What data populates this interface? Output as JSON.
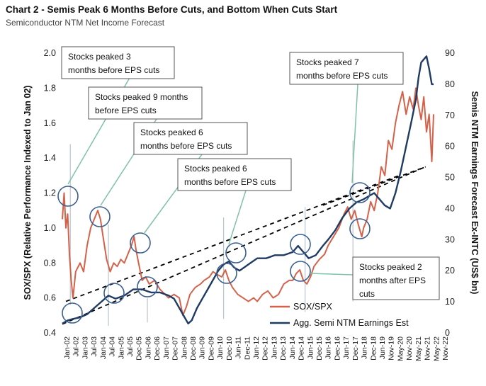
{
  "title": "Chart 2 - Semis Peak 6 Months Before Cuts, and Bottom When Cuts Start",
  "subtitle": "Semiconductor NTM Net Income Forecast",
  "colors": {
    "sox": "#d4624a",
    "earnings": "#1f3b63",
    "annotation_line": "#7fc3a6",
    "circle": "#3a5f8f",
    "vline": "#b9c4d0",
    "trend": "#000000"
  },
  "chart_data": {
    "type": "line",
    "title": "Chart 2 - Semis Peak 6 Months Before Cuts, and Bottom When Cuts Start",
    "subtitle": "Semiconductor NTM Net Income Forecast",
    "ylabel_left": "SOX/SPX (Relative Performance Indexed to Jan 02)",
    "ylabel_right": "Semis NTM Earnings Forecast Ex-INTC (US$ bn)",
    "ylim_left": [
      0.4,
      2.0
    ],
    "ylim_right": [
      0,
      90
    ],
    "yticks_left": [
      "0.4",
      "0.6",
      "0.8",
      "1.0",
      "1.2",
      "1.4",
      "1.6",
      "1.8",
      "2.0"
    ],
    "yticks_right": [
      "0",
      "10",
      "20",
      "30",
      "40",
      "50",
      "60",
      "70",
      "80",
      "90"
    ],
    "x_labels": [
      "Jan-02",
      "Jul-02",
      "Jan-03",
      "Jul-03",
      "Jan-04",
      "Jul-04",
      "Jan-05",
      "Jul-05",
      "Dec-05",
      "Jun-06",
      "Dec-06",
      "Jun-07",
      "Dec-07",
      "Jun-08",
      "Dec-08",
      "Jun-09",
      "Dec-09",
      "Jun-10",
      "Dec-10",
      "Jun-11",
      "Dec-11",
      "Jun-12",
      "Dec-12",
      "Jun-13",
      "Dec-13",
      "Jun-14",
      "Dec-14",
      "Jun-15",
      "Dec-15",
      "Jun-16",
      "Dec-16",
      "Jun-17",
      "Dec-17",
      "Jun-18",
      "Dec-18",
      "Jun-19",
      "Nov-19",
      "May-20",
      "Nov-20",
      "May-21",
      "Nov-21",
      "May-22",
      "Nov-22"
    ],
    "legend_position": "bottom-right",
    "series": [
      {
        "name": "SOX/SPX",
        "axis": "left",
        "x": [
          2002.0,
          2002.1,
          2002.2,
          2002.3,
          2002.4,
          2002.5,
          2002.6,
          2002.75,
          2003.0,
          2003.2,
          2003.4,
          2003.6,
          2003.8,
          2004.0,
          2004.15,
          2004.3,
          2004.5,
          2004.7,
          2004.9,
          2005.1,
          2005.3,
          2005.5,
          2005.7,
          2005.9,
          2006.05,
          2006.15,
          2006.3,
          2006.5,
          2006.7,
          2006.9,
          2007.2,
          2007.5,
          2007.8,
          2008.0,
          2008.3,
          2008.6,
          2008.8,
          2009.0,
          2009.2,
          2009.5,
          2009.8,
          2010.0,
          2010.3,
          2010.5,
          2010.8,
          2011.0,
          2011.2,
          2011.4,
          2011.6,
          2011.9,
          2012.2,
          2012.5,
          2012.8,
          2013.0,
          2013.3,
          2013.6,
          2013.9,
          2014.2,
          2014.5,
          2014.8,
          2015.0,
          2015.2,
          2015.4,
          2015.6,
          2015.8,
          2016.0,
          2016.2,
          2016.5,
          2016.8,
          2017.0,
          2017.3,
          2017.6,
          2017.9,
          2018.1,
          2018.3,
          2018.5,
          2018.7,
          2018.9,
          2019.0,
          2019.2,
          2019.4,
          2019.6,
          2019.8,
          2020.0,
          2020.2,
          2020.4,
          2020.6,
          2020.8,
          2021.0,
          2021.2,
          2021.4,
          2021.6,
          2021.8,
          2021.95,
          2022.1,
          2022.25,
          2022.4,
          2022.55,
          2022.7,
          2022.85,
          2022.95
        ],
        "y": [
          1.05,
          1.2,
          1.0,
          1.08,
          0.85,
          0.7,
          0.6,
          0.75,
          0.8,
          0.75,
          0.9,
          1.0,
          1.05,
          1.1,
          1.05,
          0.95,
          0.82,
          0.75,
          0.8,
          0.78,
          0.82,
          0.8,
          0.85,
          0.9,
          0.95,
          0.88,
          0.8,
          0.7,
          0.72,
          0.68,
          0.7,
          0.65,
          0.62,
          0.6,
          0.62,
          0.6,
          0.5,
          0.55,
          0.62,
          0.66,
          0.68,
          0.7,
          0.72,
          0.75,
          0.73,
          0.72,
          0.76,
          0.7,
          0.66,
          0.62,
          0.6,
          0.58,
          0.6,
          0.58,
          0.62,
          0.64,
          0.6,
          0.62,
          0.68,
          0.7,
          0.7,
          0.74,
          0.76,
          0.7,
          0.68,
          0.72,
          0.78,
          0.82,
          0.85,
          0.9,
          0.95,
          1.0,
          1.08,
          1.12,
          1.05,
          1.1,
          1.02,
          0.95,
          1.0,
          1.05,
          1.15,
          1.1,
          1.2,
          1.35,
          1.3,
          1.5,
          1.45,
          1.6,
          1.7,
          1.78,
          1.65,
          1.75,
          1.68,
          1.8,
          1.7,
          1.62,
          1.75,
          1.55,
          1.65,
          1.38,
          1.65
        ]
      },
      {
        "name": "Agg. Semi NTM Earnings Est",
        "axis": "right",
        "x": [
          2002.0,
          2002.3,
          2002.6,
          2003.0,
          2003.4,
          2003.8,
          2004.2,
          2004.6,
          2005.0,
          2005.5,
          2006.0,
          2006.5,
          2007.0,
          2007.5,
          2008.0,
          2008.3,
          2008.6,
          2008.9,
          2009.1,
          2009.3,
          2009.6,
          2009.9,
          2010.2,
          2010.5,
          2010.8,
          2011.1,
          2011.4,
          2011.7,
          2012.0,
          2012.5,
          2013.0,
          2013.5,
          2014.0,
          2014.5,
          2015.0,
          2015.3,
          2015.6,
          2015.9,
          2016.3,
          2016.7,
          2017.0,
          2017.4,
          2017.8,
          2018.2,
          2018.6,
          2019.0,
          2019.3,
          2019.6,
          2019.9,
          2020.2,
          2020.5,
          2020.8,
          2021.1,
          2021.4,
          2021.7,
          2021.95,
          2022.1,
          2022.25,
          2022.4,
          2022.55,
          2022.7,
          2022.85,
          2022.95
        ],
        "y": [
          3,
          4,
          4.5,
          5,
          6,
          8,
          10,
          12,
          11,
          12,
          14,
          14,
          13,
          13,
          12,
          11,
          8,
          5,
          3,
          4,
          8,
          11,
          14,
          17,
          20,
          22,
          23,
          21,
          20,
          22,
          24,
          24,
          25,
          25,
          26,
          28,
          26,
          24,
          25,
          28,
          30,
          33,
          37,
          40,
          42,
          43,
          44,
          45,
          43,
          41,
          40,
          45,
          52,
          60,
          68,
          75,
          82,
          87,
          88,
          89,
          85,
          80,
          80
        ]
      }
    ],
    "annotations": [
      "Stocks peaked 3 months before EPS cuts",
      "Stocks peaked 9 months before EPS cuts",
      "Stocks peaked 6 months before EPS cuts",
      "Stocks peaked 6 months before EPS cuts",
      "Stocks peaked 7 months before EPS cuts",
      "Stocks peaked 2 months after EPS cuts"
    ]
  },
  "annotations": [
    {
      "line1": "Stocks peaked 3",
      "line2": "months before EPS cuts"
    },
    {
      "line1": "Stocks peaked 9 months",
      "line2": "before EPS cuts"
    },
    {
      "line1": "Stocks peaked 6",
      "line2": "months before EPS cuts"
    },
    {
      "line1": "Stocks peaked 6",
      "line2": "months before EPS cuts"
    },
    {
      "line1": "Stocks peaked 7",
      "line2": "months before EPS cuts"
    },
    {
      "line1": "Stocks peaked 2",
      "line2": "months after EPS",
      "line3": "cuts"
    }
  ]
}
